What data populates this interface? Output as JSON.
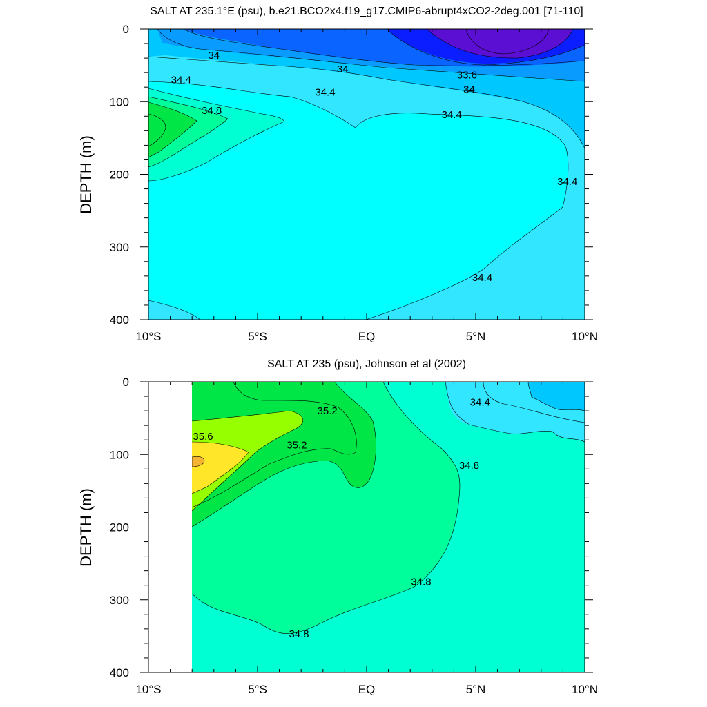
{
  "colors": {
    "violet": "#5A0FD2",
    "blue": "#0A1EFF",
    "mid_blue": "#0A64FF",
    "azure": "#0A9BFF",
    "sky": "#00C8FF",
    "light_cyan": "#32E6FF",
    "cyan": "#00FFFF",
    "aquamarine": "#00FFD2",
    "spring_green": "#00FF9B",
    "green": "#00E646",
    "lime": "#96FF00",
    "yellow": "#FFE628",
    "orange": "#F5B432"
  },
  "chart_data": [
    {
      "type": "contour",
      "title": "SALT AT 235.1°E (psu), b.e21.BCO2x4.f19_g17.CMIP6-abrupt4xCO2-2deg.001 [71-110]",
      "xlabel": "",
      "ylabel": "DEPTH (m)",
      "xlim": [
        -10,
        10
      ],
      "ylim": [
        400,
        0
      ],
      "x_ticks": [
        -10,
        -5,
        0,
        5,
        10
      ],
      "x_tick_labels": [
        "10°S",
        "5°S",
        "EQ",
        "5°N",
        "10°N"
      ],
      "y_ticks": [
        0,
        100,
        200,
        300,
        400
      ],
      "y_tick_labels": [
        "0",
        "100",
        "200",
        "300",
        "400"
      ],
      "contour_interval": 0.2,
      "contour_labels": [
        {
          "text": "34",
          "x": -7.0,
          "y": 36
        },
        {
          "text": "34",
          "x": -1.1,
          "y": 55
        },
        {
          "text": "33.6",
          "x": 4.6,
          "y": 63
        },
        {
          "text": "34.4",
          "x": -8.5,
          "y": 70
        },
        {
          "text": "34.4",
          "x": -1.9,
          "y": 87
        },
        {
          "text": "34",
          "x": 4.7,
          "y": 83
        },
        {
          "text": "34.8",
          "x": -7.1,
          "y": 112
        },
        {
          "text": "34.4",
          "x": 3.9,
          "y": 118
        },
        {
          "text": "34.4",
          "x": 9.2,
          "y": 210
        },
        {
          "text": "34.4",
          "x": 5.3,
          "y": 342
        }
      ]
    },
    {
      "type": "contour",
      "title": "SALT AT 235 (psu), Johnson et al (2002)",
      "xlabel": "",
      "ylabel": "DEPTH (m)",
      "xlim": [
        -10,
        10
      ],
      "ylim": [
        400,
        0
      ],
      "x_ticks": [
        -10,
        -5,
        0,
        5,
        10
      ],
      "x_tick_labels": [
        "10°S",
        "5°S",
        "EQ",
        "5°N",
        "10°N"
      ],
      "y_ticks": [
        0,
        100,
        200,
        300,
        400
      ],
      "y_tick_labels": [
        "0",
        "100",
        "200",
        "300",
        "400"
      ],
      "data_x_range": [
        -8,
        10
      ],
      "contour_interval": 0.2,
      "contour_labels": [
        {
          "text": "35.2",
          "x": -1.8,
          "y": 40
        },
        {
          "text": "35.6",
          "x": -7.5,
          "y": 75
        },
        {
          "text": "35.2",
          "x": -3.2,
          "y": 87
        },
        {
          "text": "34.4",
          "x": 5.2,
          "y": 28
        },
        {
          "text": "34.8",
          "x": 4.7,
          "y": 115
        },
        {
          "text": "34.8",
          "x": 2.5,
          "y": 275
        },
        {
          "text": "34.8",
          "x": -3.1,
          "y": 347
        }
      ]
    }
  ]
}
